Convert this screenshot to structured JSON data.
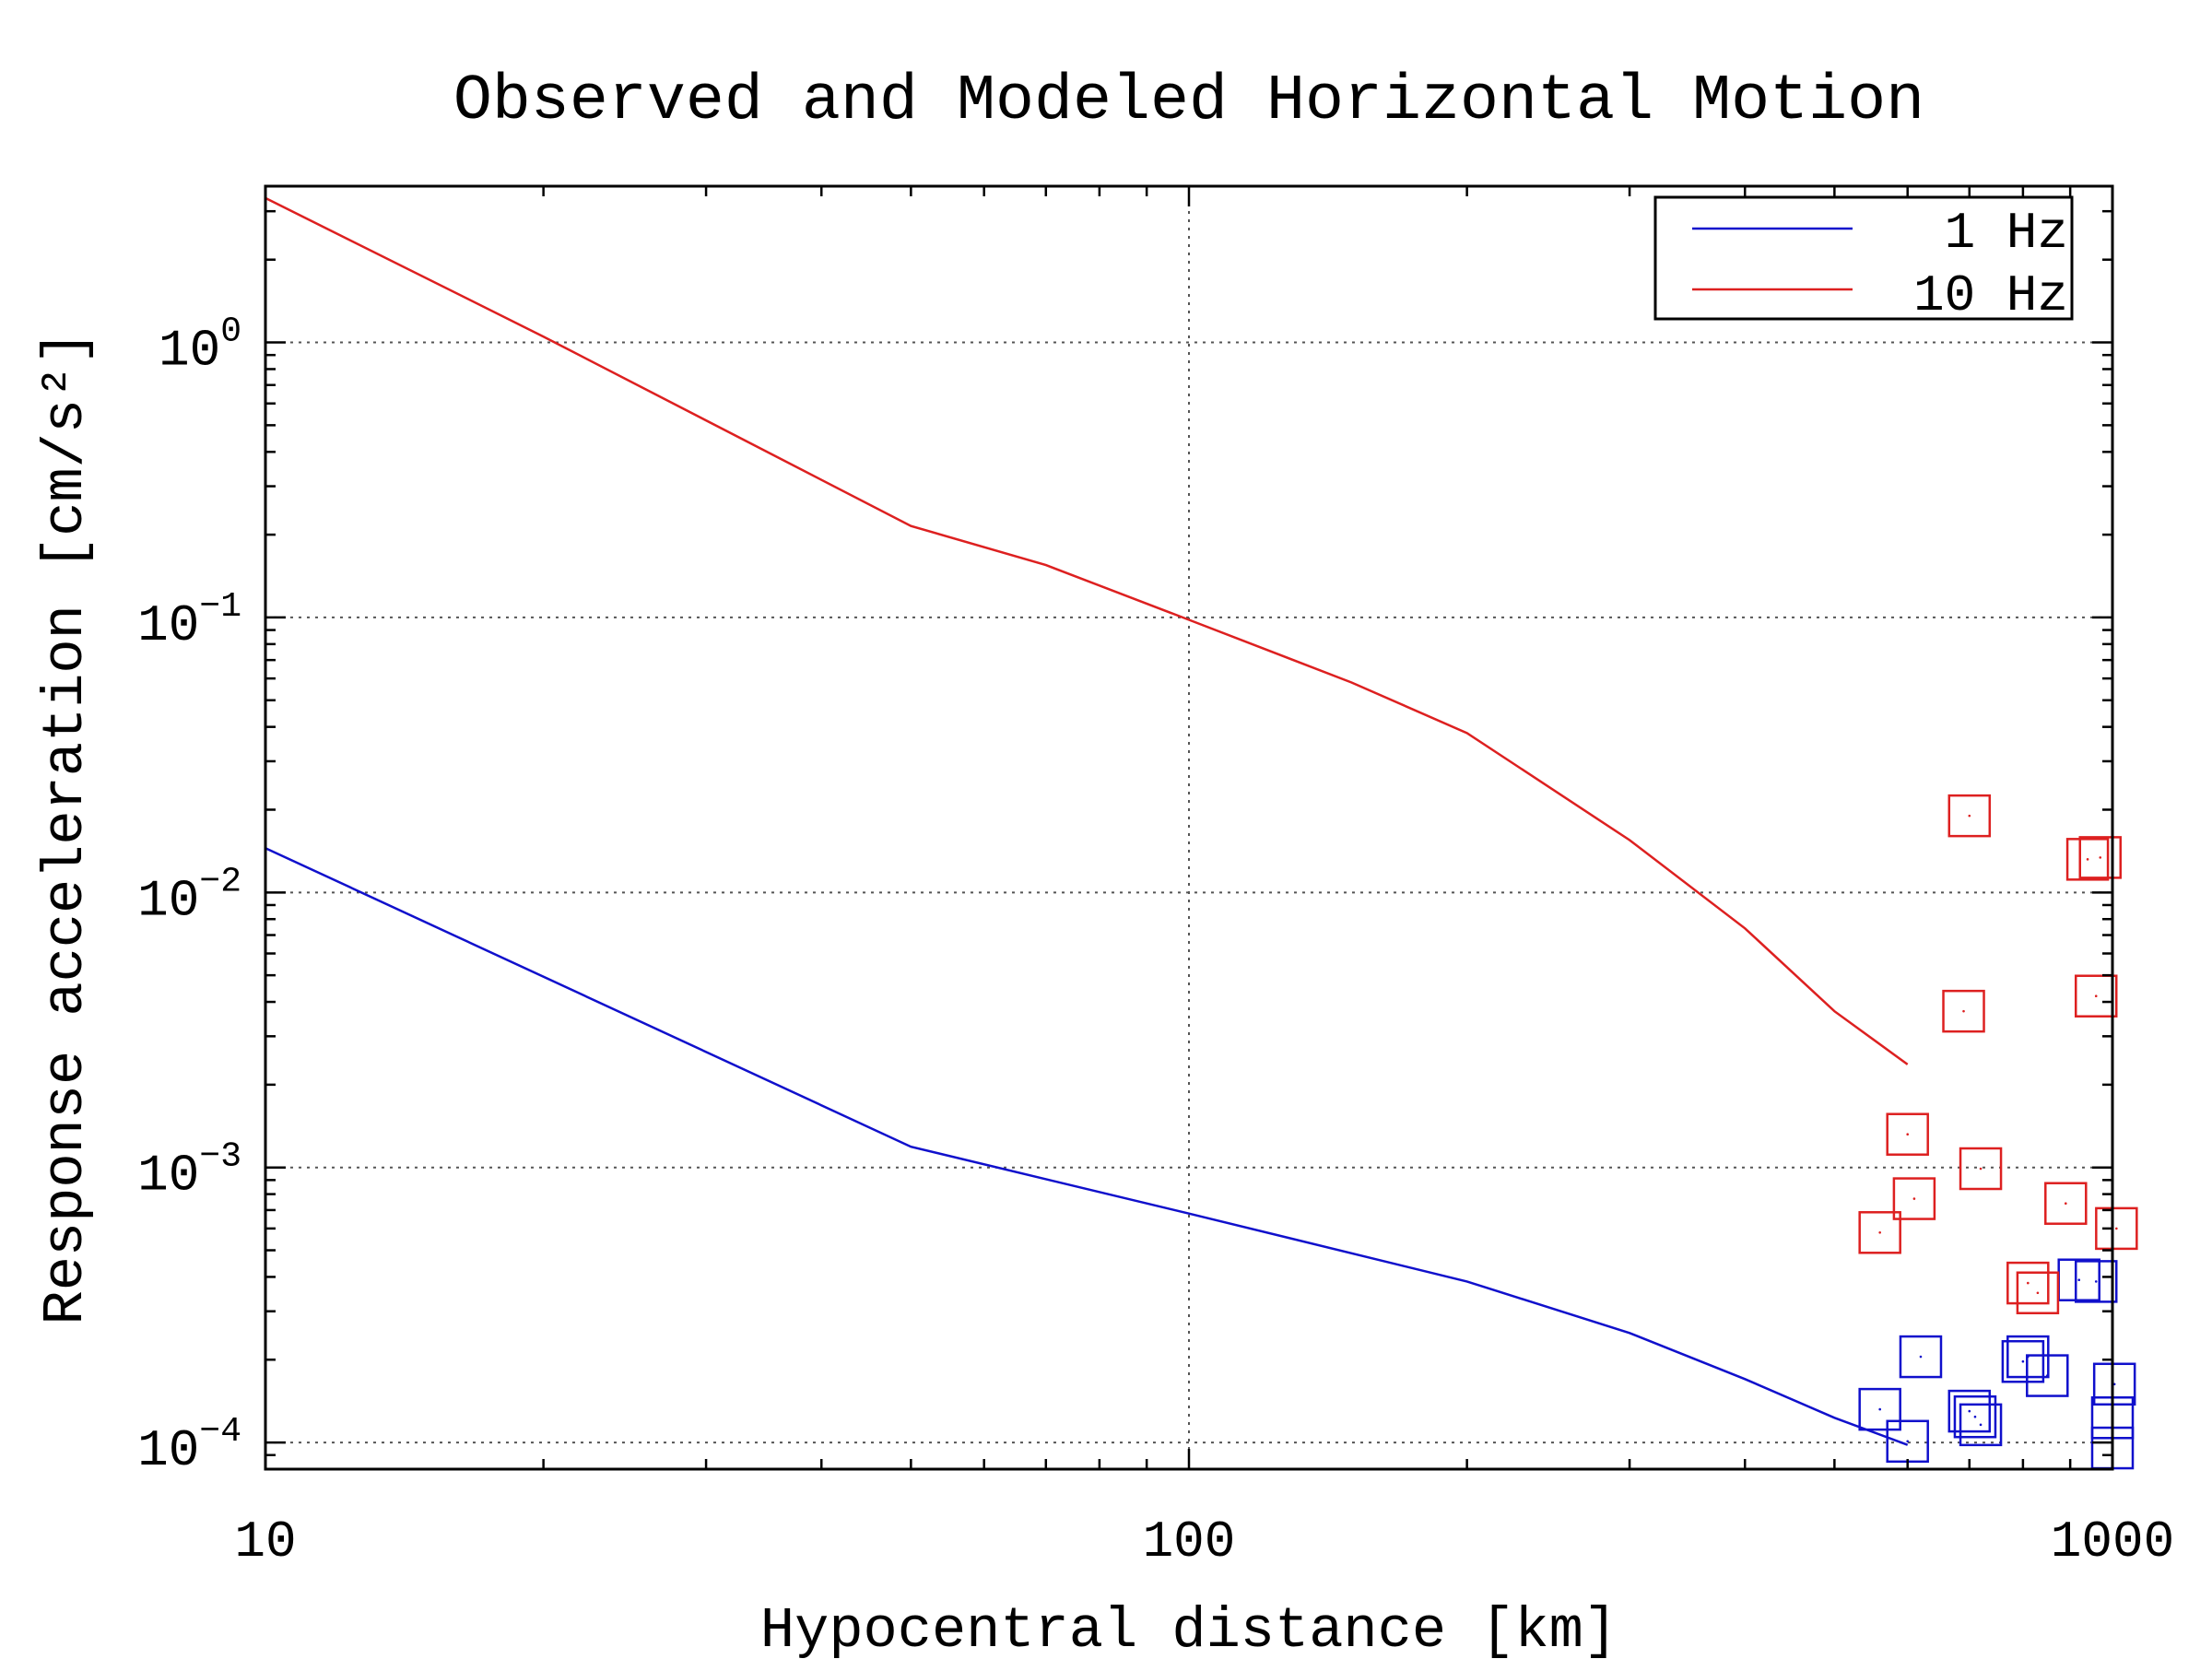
{
  "chart_data": {
    "type": "line",
    "title": "Observed and Modeled Horizontal Motion",
    "xlabel": "Hypocentral distance [km]",
    "ylabel": "Response acceleration [cm/s²]",
    "x_scale": "log",
    "y_scale": "log",
    "xlim": [
      10,
      1000
    ],
    "ylim": [
      8e-05,
      3.7
    ],
    "x_ticks": [
      {
        "value": 10,
        "label": "10"
      },
      {
        "value": 100,
        "label": "100"
      },
      {
        "value": 1000,
        "label": "1000"
      }
    ],
    "y_ticks": [
      {
        "value": 0.0001,
        "base": "10",
        "exp": "−4"
      },
      {
        "value": 0.001,
        "base": "10",
        "exp": "−3"
      },
      {
        "value": 0.01,
        "base": "10",
        "exp": "−2"
      },
      {
        "value": 0.1,
        "base": "10",
        "exp": "−1"
      },
      {
        "value": 1,
        "base": "10",
        "exp": "0"
      }
    ],
    "grid": true,
    "legend_position": "top-right",
    "series": [
      {
        "name": "1 Hz",
        "color": "#1010cc",
        "line": {
          "x": [
            10,
            50,
            100,
            200,
            300,
            400,
            500,
            600
          ],
          "y": [
            0.0145,
            0.00119,
            0.00068,
            0.000385,
            0.00025,
            0.00017,
            0.000123,
            9.8e-05
          ]
        },
        "observed": {
          "x": [
            560,
            600,
            620,
            700,
            710,
            720,
            800,
            810,
            850,
            920,
            960,
            1000,
            1000,
            1005
          ],
          "y": [
            0.000132,
            0.000101,
            0.000205,
            0.00013,
            0.000124,
            0.000116,
            0.000197,
            0.000205,
            0.000175,
            0.00039,
            0.000385,
            0.000123,
            9.55e-05,
            0.000163
          ]
        }
      },
      {
        "name": "10 Hz",
        "color": "#dd2020",
        "line": {
          "x": [
            10,
            20,
            50,
            70,
            100,
            150,
            200,
            300,
            400,
            500,
            600
          ],
          "y": [
            3.35,
            1.05,
            0.215,
            0.155,
            0.098,
            0.058,
            0.038,
            0.0155,
            0.0074,
            0.0037,
            0.00237
          ]
        },
        "observed": {
          "x": [
            560,
            600,
            610,
            690,
            700,
            720,
            810,
            830,
            890,
            940,
            960,
            970,
            1010
          ],
          "y": [
            0.00058,
            0.00132,
            0.00077,
            0.0037,
            0.019,
            0.00099,
            0.00038,
            0.00035,
            0.00074,
            0.0132,
            0.0042,
            0.0134,
            0.0006
          ]
        }
      }
    ]
  }
}
